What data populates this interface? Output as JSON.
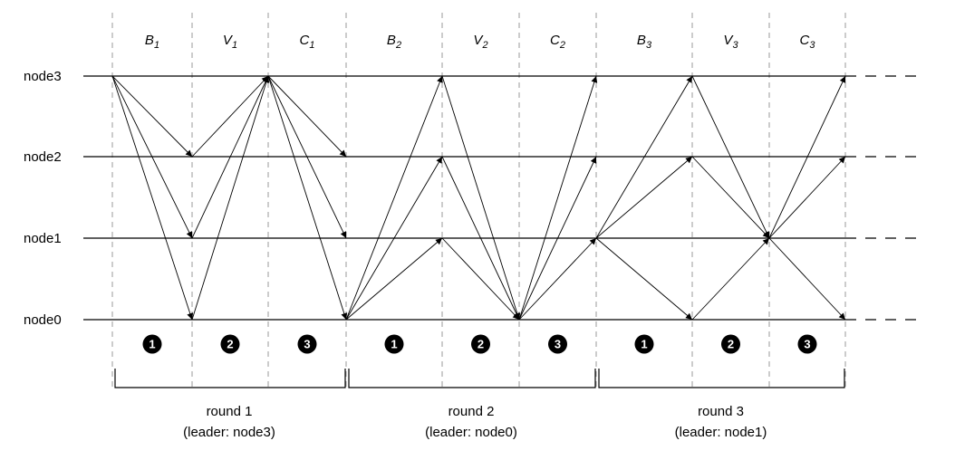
{
  "nodes": [
    "node0",
    "node1",
    "node2",
    "node3"
  ],
  "rounds": [
    {
      "title": "round 1",
      "leader_text": "(leader: node3)",
      "phases": [
        {
          "base": "B",
          "sub": "1"
        },
        {
          "base": "V",
          "sub": "1"
        },
        {
          "base": "C",
          "sub": "1"
        }
      ],
      "steps": [
        "1",
        "2",
        "3"
      ]
    },
    {
      "title": "round 2",
      "leader_text": "(leader: node0)",
      "phases": [
        {
          "base": "B",
          "sub": "2"
        },
        {
          "base": "V",
          "sub": "2"
        },
        {
          "base": "C",
          "sub": "2"
        }
      ],
      "steps": [
        "1",
        "2",
        "3"
      ]
    },
    {
      "title": "round 3",
      "leader_text": "(leader: node1)",
      "phases": [
        {
          "base": "B",
          "sub": "3"
        },
        {
          "base": "V",
          "sub": "3"
        },
        {
          "base": "C",
          "sub": "3"
        }
      ],
      "steps": [
        "1",
        "2",
        "3"
      ]
    }
  ],
  "messages": [
    {
      "phase": 0,
      "from": "node3",
      "to": "node2"
    },
    {
      "phase": 0,
      "from": "node3",
      "to": "node1"
    },
    {
      "phase": 0,
      "from": "node3",
      "to": "node0"
    },
    {
      "phase": 1,
      "from": "node2",
      "to": "node3"
    },
    {
      "phase": 1,
      "from": "node1",
      "to": "node3"
    },
    {
      "phase": 1,
      "from": "node0",
      "to": "node3"
    },
    {
      "phase": 2,
      "from": "node3",
      "to": "node2"
    },
    {
      "phase": 2,
      "from": "node3",
      "to": "node1"
    },
    {
      "phase": 2,
      "from": "node3",
      "to": "node0"
    },
    {
      "phase": 3,
      "from": "node0",
      "to": "node1"
    },
    {
      "phase": 3,
      "from": "node0",
      "to": "node2"
    },
    {
      "phase": 3,
      "from": "node0",
      "to": "node3"
    },
    {
      "phase": 4,
      "from": "node1",
      "to": "node0"
    },
    {
      "phase": 4,
      "from": "node2",
      "to": "node0"
    },
    {
      "phase": 4,
      "from": "node3",
      "to": "node0"
    },
    {
      "phase": 5,
      "from": "node0",
      "to": "node1"
    },
    {
      "phase": 5,
      "from": "node0",
      "to": "node2"
    },
    {
      "phase": 5,
      "from": "node0",
      "to": "node3"
    },
    {
      "phase": 6,
      "from": "node1",
      "to": "node0"
    },
    {
      "phase": 6,
      "from": "node1",
      "to": "node2"
    },
    {
      "phase": 6,
      "from": "node1",
      "to": "node3"
    },
    {
      "phase": 7,
      "from": "node0",
      "to": "node1"
    },
    {
      "phase": 7,
      "from": "node2",
      "to": "node1"
    },
    {
      "phase": 7,
      "from": "node3",
      "to": "node1"
    },
    {
      "phase": 8,
      "from": "node1",
      "to": "node0"
    },
    {
      "phase": 8,
      "from": "node1",
      "to": "node2"
    },
    {
      "phase": 8,
      "from": "node1",
      "to": "node3"
    }
  ],
  "colors": {
    "line": "#000000",
    "divider": "#999999",
    "marker_fill": "#000000",
    "marker_text": "#ffffff"
  }
}
